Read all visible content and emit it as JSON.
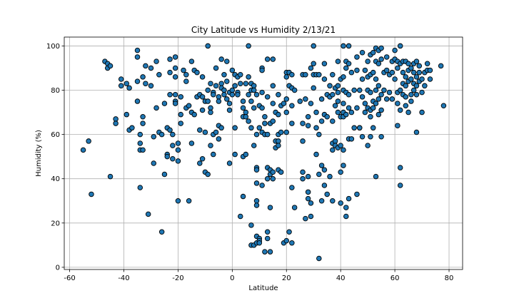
{
  "chart_data": {
    "type": "scatter",
    "title": "City Latitude vs Humidity 2/13/21",
    "xlabel": "Latitude",
    "ylabel": "Humidity (%)",
    "xlim": [
      -62,
      85
    ],
    "ylim": [
      -1,
      104
    ],
    "xticks": [
      "-60",
      "-40",
      "-20",
      "0",
      "20",
      "40",
      "60",
      "80"
    ],
    "yticks": [
      "0",
      "20",
      "40",
      "60",
      "80",
      "100"
    ],
    "grid": true,
    "marker_color": "#1f77b4",
    "points": [
      [
        -55,
        53
      ],
      [
        -53,
        57
      ],
      [
        -52,
        33
      ],
      [
        -47,
        93
      ],
      [
        -46,
        92
      ],
      [
        -46,
        90
      ],
      [
        -45,
        91
      ],
      [
        -45,
        41
      ],
      [
        -43,
        67
      ],
      [
        -43,
        65
      ],
      [
        -41,
        82
      ],
      [
        -41,
        85
      ],
      [
        -39,
        69
      ],
      [
        -39,
        83
      ],
      [
        -38,
        62
      ],
      [
        -38,
        81
      ],
      [
        -37,
        63
      ],
      [
        -35,
        98
      ],
      [
        -35,
        95
      ],
      [
        -35,
        84
      ],
      [
        -35,
        75
      ],
      [
        -34,
        60
      ],
      [
        -34,
        56
      ],
      [
        -34,
        36
      ],
      [
        -34,
        53
      ],
      [
        -33,
        68
      ],
      [
        -33,
        65
      ],
      [
        -33,
        53
      ],
      [
        -33,
        86
      ],
      [
        -32,
        83
      ],
      [
        -32,
        91
      ],
      [
        -31,
        24
      ],
      [
        -30,
        90
      ],
      [
        -30,
        82
      ],
      [
        -29,
        59
      ],
      [
        -29,
        47
      ],
      [
        -28,
        93
      ],
      [
        -28,
        72
      ],
      [
        -27,
        87
      ],
      [
        -27,
        61
      ],
      [
        -26,
        16
      ],
      [
        -26,
        60
      ],
      [
        -25,
        42
      ],
      [
        -25,
        74
      ],
      [
        -24,
        51
      ],
      [
        -24,
        50
      ],
      [
        -24,
        63
      ],
      [
        -23,
        94
      ],
      [
        -23,
        88
      ],
      [
        -23,
        78
      ],
      [
        -23,
        62
      ],
      [
        -22,
        60
      ],
      [
        -22,
        55
      ],
      [
        -22,
        49
      ],
      [
        -21,
        95
      ],
      [
        -21,
        90
      ],
      [
        -21,
        86
      ],
      [
        -21,
        78
      ],
      [
        -21,
        75
      ],
      [
        -21,
        74
      ],
      [
        -20,
        56
      ],
      [
        -20,
        53
      ],
      [
        -20,
        48
      ],
      [
        -20,
        30
      ],
      [
        -19,
        77
      ],
      [
        -19,
        69
      ],
      [
        -19,
        65
      ],
      [
        -18,
        89
      ],
      [
        -17,
        87
      ],
      [
        -17,
        84
      ],
      [
        -17,
        72
      ],
      [
        -16,
        30
      ],
      [
        -16,
        73
      ],
      [
        -15,
        93
      ],
      [
        -15,
        70
      ],
      [
        -15,
        56
      ],
      [
        -14,
        89
      ],
      [
        -14,
        69
      ],
      [
        -13,
        88
      ],
      [
        -13,
        77
      ],
      [
        -12,
        62
      ],
      [
        -12,
        78
      ],
      [
        -12,
        47
      ],
      [
        -11,
        86
      ],
      [
        -11,
        77
      ],
      [
        -11,
        71
      ],
      [
        -11,
        49
      ],
      [
        -10,
        75
      ],
      [
        -10,
        61
      ],
      [
        -10,
        43
      ],
      [
        -9,
        42
      ],
      [
        -9,
        100
      ],
      [
        -9,
        80
      ],
      [
        -9,
        75
      ],
      [
        -8,
        83
      ],
      [
        -8,
        72
      ],
      [
        -8,
        70
      ],
      [
        -8,
        55
      ],
      [
        -7,
        79
      ],
      [
        -7,
        78
      ],
      [
        -7,
        60
      ],
      [
        -7,
        51
      ],
      [
        -6,
        90
      ],
      [
        -6,
        82
      ],
      [
        -6,
        61
      ],
      [
        -5,
        77
      ],
      [
        -5,
        75
      ],
      [
        -5,
        64
      ],
      [
        -5,
        58
      ],
      [
        -4,
        94
      ],
      [
        -4,
        83
      ],
      [
        -4,
        81
      ],
      [
        -4,
        63
      ],
      [
        -3,
        87
      ],
      [
        -3,
        80
      ],
      [
        -3,
        78
      ],
      [
        -2,
        93
      ],
      [
        -2,
        84
      ],
      [
        -2,
        76
      ],
      [
        -1,
        79
      ],
      [
        -1,
        74
      ],
      [
        -1,
        71
      ],
      [
        -1,
        47
      ],
      [
        0,
        89
      ],
      [
        0,
        80
      ],
      [
        0,
        78
      ],
      [
        1,
        87
      ],
      [
        1,
        82
      ],
      [
        1,
        63
      ],
      [
        1,
        51
      ],
      [
        2,
        86
      ],
      [
        2,
        79
      ],
      [
        2,
        78
      ],
      [
        3,
        87
      ],
      [
        3,
        83
      ],
      [
        3,
        23
      ],
      [
        4,
        75
      ],
      [
        4,
        72
      ],
      [
        4,
        68
      ],
      [
        4,
        50
      ],
      [
        4,
        32
      ],
      [
        5,
        83
      ],
      [
        5,
        70
      ],
      [
        5,
        68
      ],
      [
        5,
        51
      ],
      [
        6,
        100
      ],
      [
        6,
        86
      ],
      [
        6,
        78
      ],
      [
        6,
        66
      ],
      [
        7,
        83
      ],
      [
        7,
        80
      ],
      [
        7,
        75
      ],
      [
        7,
        63
      ],
      [
        7,
        19
      ],
      [
        7,
        10
      ],
      [
        8,
        82
      ],
      [
        8,
        80
      ],
      [
        8,
        72
      ],
      [
        8,
        55
      ],
      [
        8,
        10
      ],
      [
        9,
        78
      ],
      [
        9,
        60
      ],
      [
        9,
        45
      ],
      [
        9,
        44
      ],
      [
        9,
        38
      ],
      [
        9,
        30
      ],
      [
        9,
        28
      ],
      [
        9,
        14
      ],
      [
        9,
        11
      ],
      [
        10,
        73
      ],
      [
        10,
        63
      ],
      [
        10,
        13
      ],
      [
        10,
        12
      ],
      [
        10,
        11
      ],
      [
        11,
        90
      ],
      [
        11,
        89
      ],
      [
        11,
        79
      ],
      [
        11,
        72
      ],
      [
        11,
        61
      ],
      [
        11,
        37
      ],
      [
        12,
        68
      ],
      [
        12,
        65
      ],
      [
        12,
        60
      ],
      [
        12,
        7
      ],
      [
        13,
        94
      ],
      [
        13,
        77
      ],
      [
        13,
        60
      ],
      [
        13,
        45
      ],
      [
        13,
        40
      ],
      [
        13,
        16
      ],
      [
        13,
        13
      ],
      [
        14,
        65
      ],
      [
        14,
        44
      ],
      [
        14,
        42
      ],
      [
        14,
        27
      ],
      [
        14,
        7
      ],
      [
        15,
        94
      ],
      [
        15,
        82
      ],
      [
        15,
        74
      ],
      [
        15,
        66
      ],
      [
        15,
        43
      ],
      [
        15,
        40
      ],
      [
        16,
        70
      ],
      [
        16,
        57
      ],
      [
        16,
        54
      ],
      [
        17,
        78
      ],
      [
        17,
        69
      ],
      [
        17,
        60
      ],
      [
        17,
        57
      ],
      [
        17,
        55
      ],
      [
        17,
        44
      ],
      [
        18,
        73
      ],
      [
        18,
        61
      ],
      [
        18,
        43
      ],
      [
        19,
        74
      ],
      [
        19,
        11
      ],
      [
        20,
        88
      ],
      [
        20,
        86
      ],
      [
        20,
        76
      ],
      [
        20,
        70
      ],
      [
        20,
        61
      ],
      [
        20,
        12
      ],
      [
        21,
        88
      ],
      [
        21,
        82
      ],
      [
        21,
        16
      ],
      [
        22,
        87
      ],
      [
        22,
        81
      ],
      [
        22,
        73
      ],
      [
        22,
        65
      ],
      [
        22,
        36
      ],
      [
        22,
        11
      ],
      [
        23,
        80
      ],
      [
        23,
        27
      ],
      [
        25,
        75
      ],
      [
        26,
        87
      ],
      [
        26,
        65
      ],
      [
        26,
        57
      ],
      [
        26,
        43
      ],
      [
        26,
        40
      ],
      [
        27,
        87
      ],
      [
        27,
        76
      ],
      [
        27,
        22
      ],
      [
        28,
        68
      ],
      [
        28,
        64
      ],
      [
        28,
        41
      ],
      [
        28,
        34
      ],
      [
        28,
        31
      ],
      [
        29,
        90
      ],
      [
        29,
        74
      ],
      [
        29,
        29
      ],
      [
        29,
        23
      ],
      [
        30,
        100
      ],
      [
        30,
        92
      ],
      [
        30,
        87
      ],
      [
        30,
        81
      ],
      [
        31,
        87
      ],
      [
        31,
        70
      ],
      [
        31,
        63
      ],
      [
        31,
        51
      ],
      [
        32,
        87
      ],
      [
        32,
        60
      ],
      [
        32,
        42
      ],
      [
        32,
        4
      ],
      [
        33,
        76
      ],
      [
        33,
        66
      ],
      [
        33,
        46
      ],
      [
        33,
        30
      ],
      [
        34,
        92
      ],
      [
        34,
        85
      ],
      [
        34,
        69
      ],
      [
        34,
        44
      ],
      [
        34,
        37
      ],
      [
        35,
        78
      ],
      [
        35,
        68
      ],
      [
        35,
        33
      ],
      [
        36,
        82
      ],
      [
        36,
        77
      ],
      [
        36,
        41
      ],
      [
        37,
        87
      ],
      [
        37,
        78
      ],
      [
        37,
        66
      ],
      [
        37,
        56
      ],
      [
        37,
        53
      ],
      [
        37,
        30
      ],
      [
        38,
        81
      ],
      [
        38,
        73
      ],
      [
        38,
        57
      ],
      [
        38,
        55
      ],
      [
        39,
        93
      ],
      [
        39,
        82
      ],
      [
        39,
        79
      ],
      [
        39,
        75
      ],
      [
        39,
        70
      ],
      [
        39,
        54
      ],
      [
        40,
        85
      ],
      [
        40,
        68
      ],
      [
        40,
        55
      ],
      [
        40,
        43
      ],
      [
        40,
        29
      ],
      [
        41,
        100
      ],
      [
        41,
        86
      ],
      [
        41,
        80
      ],
      [
        41,
        74
      ],
      [
        41,
        70
      ],
      [
        41,
        68
      ],
      [
        41,
        53
      ],
      [
        41,
        46
      ],
      [
        42,
        93
      ],
      [
        42,
        90
      ],
      [
        42,
        79
      ],
      [
        42,
        69
      ],
      [
        42,
        27
      ],
      [
        42,
        23
      ],
      [
        43,
        100
      ],
      [
        43,
        92
      ],
      [
        43,
        78
      ],
      [
        43,
        72
      ],
      [
        43,
        58
      ],
      [
        43,
        31
      ],
      [
        44,
        88
      ],
      [
        44,
        70
      ],
      [
        44,
        58
      ],
      [
        45,
        80
      ],
      [
        45,
        63
      ],
      [
        46,
        95
      ],
      [
        46,
        89
      ],
      [
        46,
        72
      ],
      [
        46,
        33
      ],
      [
        47,
        80
      ],
      [
        47,
        63
      ],
      [
        47,
        63
      ],
      [
        48,
        97
      ],
      [
        48,
        85
      ],
      [
        48,
        77
      ],
      [
        48,
        59
      ],
      [
        49,
        89
      ],
      [
        49,
        74
      ],
      [
        49,
        70
      ],
      [
        50,
        93
      ],
      [
        50,
        86
      ],
      [
        50,
        80
      ],
      [
        50,
        72
      ],
      [
        50,
        55
      ],
      [
        51,
        96
      ],
      [
        51,
        87
      ],
      [
        51,
        79
      ],
      [
        51,
        71
      ],
      [
        51,
        68
      ],
      [
        51,
        59
      ],
      [
        52,
        97
      ],
      [
        52,
        88
      ],
      [
        52,
        75
      ],
      [
        52,
        72
      ],
      [
        52,
        63
      ],
      [
        53,
        99
      ],
      [
        53,
        93
      ],
      [
        53,
        85
      ],
      [
        53,
        80
      ],
      [
        53,
        74
      ],
      [
        53,
        41
      ],
      [
        54,
        98
      ],
      [
        54,
        92
      ],
      [
        54,
        82
      ],
      [
        54,
        76
      ],
      [
        54,
        69
      ],
      [
        55,
        99
      ],
      [
        55,
        94
      ],
      [
        55,
        78
      ],
      [
        55,
        71
      ],
      [
        55,
        59
      ],
      [
        56,
        88
      ],
      [
        56,
        80
      ],
      [
        57,
        95
      ],
      [
        57,
        89
      ],
      [
        57,
        76
      ],
      [
        58,
        87
      ],
      [
        58,
        79
      ],
      [
        59,
        93
      ],
      [
        59,
        88
      ],
      [
        59,
        76
      ],
      [
        60,
        98
      ],
      [
        60,
        94
      ],
      [
        60,
        85
      ],
      [
        61,
        93
      ],
      [
        61,
        90
      ],
      [
        61,
        79
      ],
      [
        61,
        74
      ],
      [
        61,
        64
      ],
      [
        62,
        100
      ],
      [
        62,
        92
      ],
      [
        62,
        80
      ],
      [
        62,
        71
      ],
      [
        62,
        45
      ],
      [
        62,
        37
      ],
      [
        63,
        93
      ],
      [
        63,
        88
      ],
      [
        63,
        83
      ],
      [
        63,
        78
      ],
      [
        64,
        93
      ],
      [
        64,
        86
      ],
      [
        64,
        82
      ],
      [
        64,
        77
      ],
      [
        64,
        73
      ],
      [
        65,
        92
      ],
      [
        65,
        89
      ],
      [
        65,
        84
      ],
      [
        65,
        70
      ],
      [
        66,
        90
      ],
      [
        66,
        85
      ],
      [
        66,
        78
      ],
      [
        66,
        75
      ],
      [
        67,
        92
      ],
      [
        67,
        88
      ],
      [
        67,
        83
      ],
      [
        67,
        80
      ],
      [
        68,
        93
      ],
      [
        68,
        86
      ],
      [
        68,
        82
      ],
      [
        68,
        78
      ],
      [
        68,
        61
      ],
      [
        69,
        91
      ],
      [
        69,
        88
      ],
      [
        69,
        84
      ],
      [
        70,
        85
      ],
      [
        70,
        79
      ],
      [
        70,
        70
      ],
      [
        71,
        88
      ],
      [
        71,
        82
      ],
      [
        72,
        92
      ],
      [
        72,
        89
      ],
      [
        73,
        89
      ],
      [
        73,
        85
      ],
      [
        77,
        91
      ],
      [
        78,
        73
      ]
    ]
  }
}
